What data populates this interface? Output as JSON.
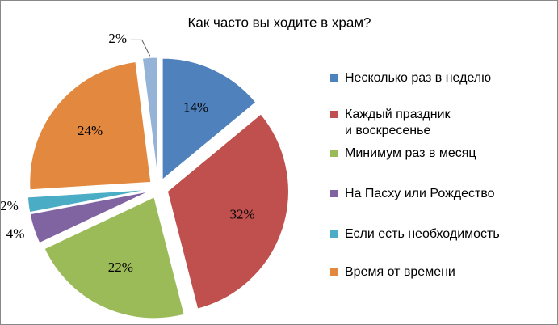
{
  "chart_data": {
    "type": "pie",
    "title": "Как часто вы ходите в храм?",
    "categories": [
      "Несколько раз в неделю",
      "Каждый праздник\nи воскресенье",
      "Минимум раз в месяц",
      "На Пасху или Рождество",
      "Если есть необходимость",
      "Время от времени",
      null
    ],
    "values": [
      14,
      32,
      22,
      4,
      2,
      24,
      2
    ],
    "value_labels": [
      "14%",
      "32%",
      "22%",
      "4%",
      "2%",
      "24%",
      "2%"
    ],
    "colors": [
      "#4f81bd",
      "#c0504d",
      "#9bbb59",
      "#8064a2",
      "#4bacc6",
      "#e3883f",
      "#95b3d7"
    ],
    "legend": "right"
  }
}
